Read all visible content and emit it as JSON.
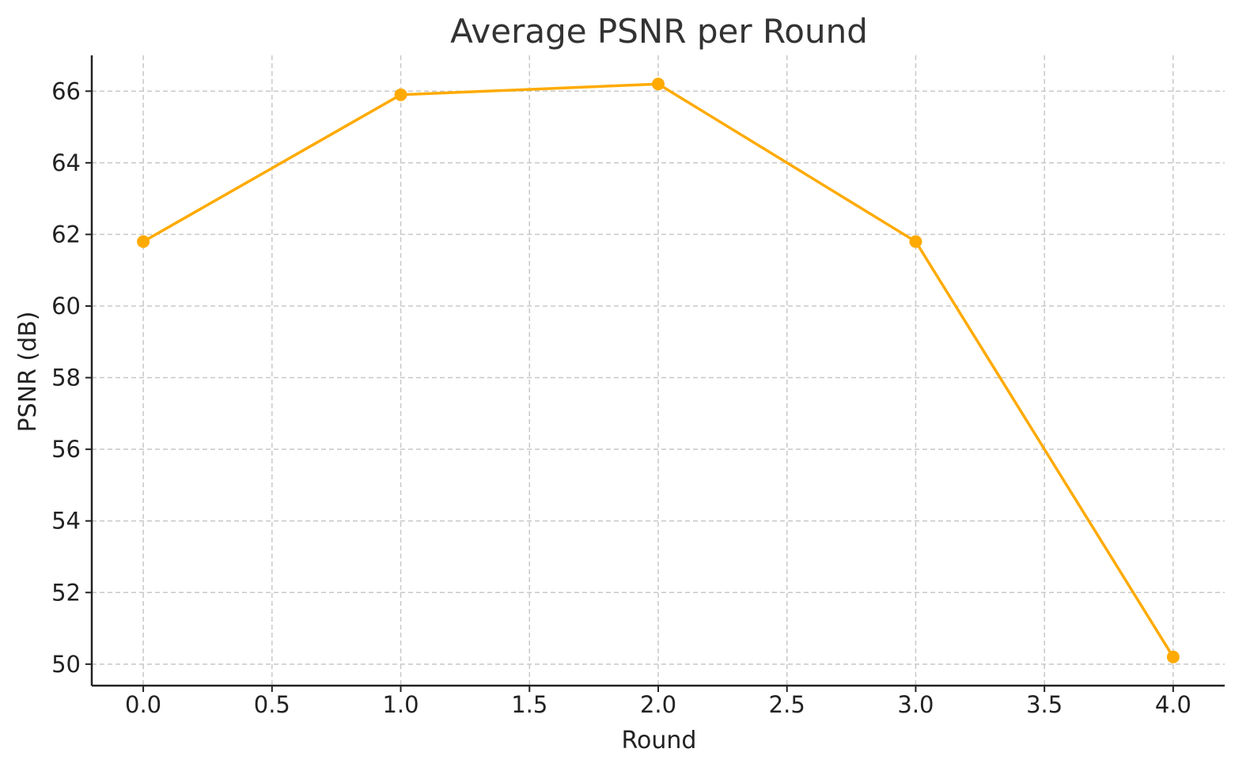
{
  "chart_data": {
    "type": "line",
    "title": "Average PSNR per Round",
    "xlabel": "Round",
    "ylabel": "PSNR (dB)",
    "x": [
      0,
      1,
      2,
      3,
      4
    ],
    "series": [
      {
        "values": [
          61.8,
          65.9,
          66.2,
          61.8,
          50.2
        ],
        "color": "#FFAA00",
        "marker": "circle"
      }
    ],
    "xlim": [
      -0.2,
      4.2
    ],
    "ylim": [
      49.4,
      67.0
    ],
    "xticks": [
      0.0,
      0.5,
      1.0,
      1.5,
      2.0,
      2.5,
      3.0,
      3.5,
      4.0
    ],
    "xtick_labels": [
      "0.0",
      "0.5",
      "1.0",
      "1.5",
      "2.0",
      "2.5",
      "3.0",
      "3.5",
      "4.0"
    ],
    "yticks": [
      50,
      52,
      54,
      56,
      58,
      60,
      62,
      64,
      66
    ],
    "ytick_labels": [
      "50",
      "52",
      "54",
      "56",
      "58",
      "60",
      "62",
      "64",
      "66"
    ],
    "grid": true,
    "legend": "none"
  }
}
